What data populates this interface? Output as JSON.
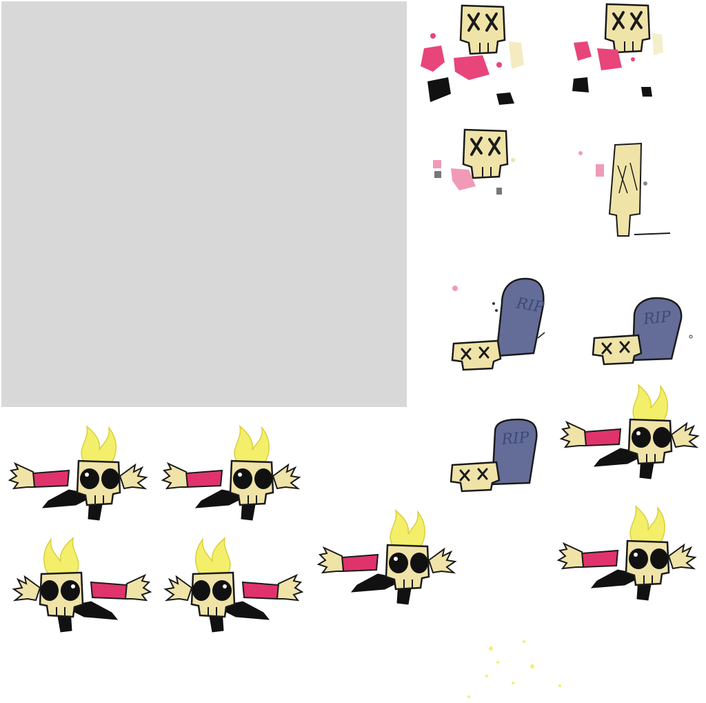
{
  "sheet": {
    "background": "#ffffff",
    "placeholder_color": "#d8d8d8"
  },
  "palette": {
    "skull": "#efe3a8",
    "outline": "#1a1a1a",
    "flame": "#f3ef6a",
    "jacket": "#e0336b",
    "pants": "#111111",
    "tombstone": "#646d98",
    "blood": "#e8457a",
    "blood_light": "#f19ab8"
  },
  "tombstones": [
    {
      "label": "RIP"
    },
    {
      "label": "RIP"
    },
    {
      "label": "RIP"
    }
  ],
  "frames": {
    "death": [
      "death-1",
      "death-2",
      "death-3",
      "death-4"
    ],
    "grave": [
      "grave-1",
      "grave-2",
      "grave-3"
    ],
    "flying": [
      "fly-1",
      "fly-2",
      "fly-3",
      "fly-4",
      "fly-5",
      "fly-6",
      "fly-7"
    ],
    "sparkle": [
      "sparkle-1"
    ]
  }
}
